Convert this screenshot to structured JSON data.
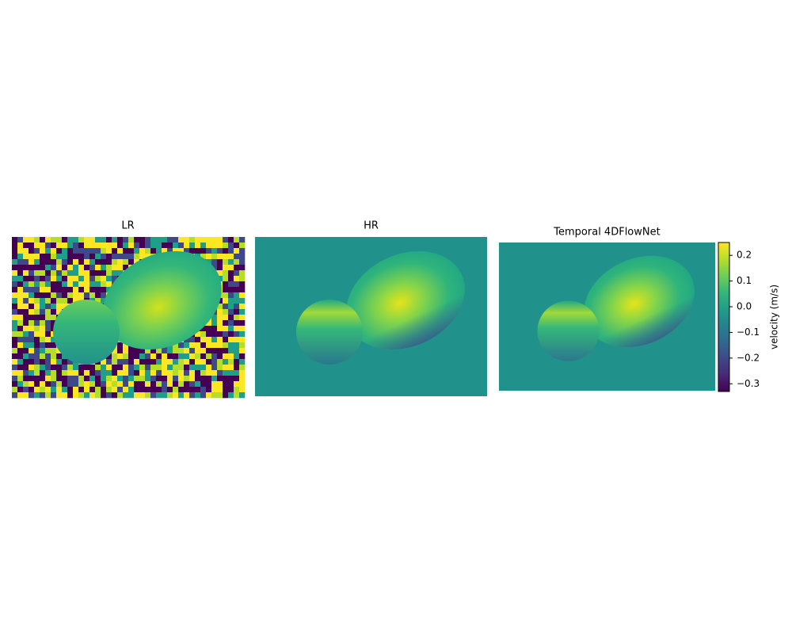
{
  "chart_data": {
    "type": "image",
    "panels": [
      {
        "title": "LR",
        "noise": true
      },
      {
        "title": "HR",
        "noise": false
      },
      {
        "title": "Temporal 4DFlowNet",
        "noise": false
      }
    ],
    "colorbar": {
      "label": "velocity (m/s)",
      "colormap": "viridis",
      "ylim": [
        -0.33,
        0.25
      ],
      "yticks": [
        0.2,
        0.1,
        {
          "value": 0,
          "label": "0.0"
        },
        {
          "value": -0.1,
          "label": "−0.1"
        },
        {
          "value": -0.2,
          "label": "−0.2"
        },
        {
          "value": -0.3,
          "label": "−0.3"
        }
      ]
    }
  }
}
